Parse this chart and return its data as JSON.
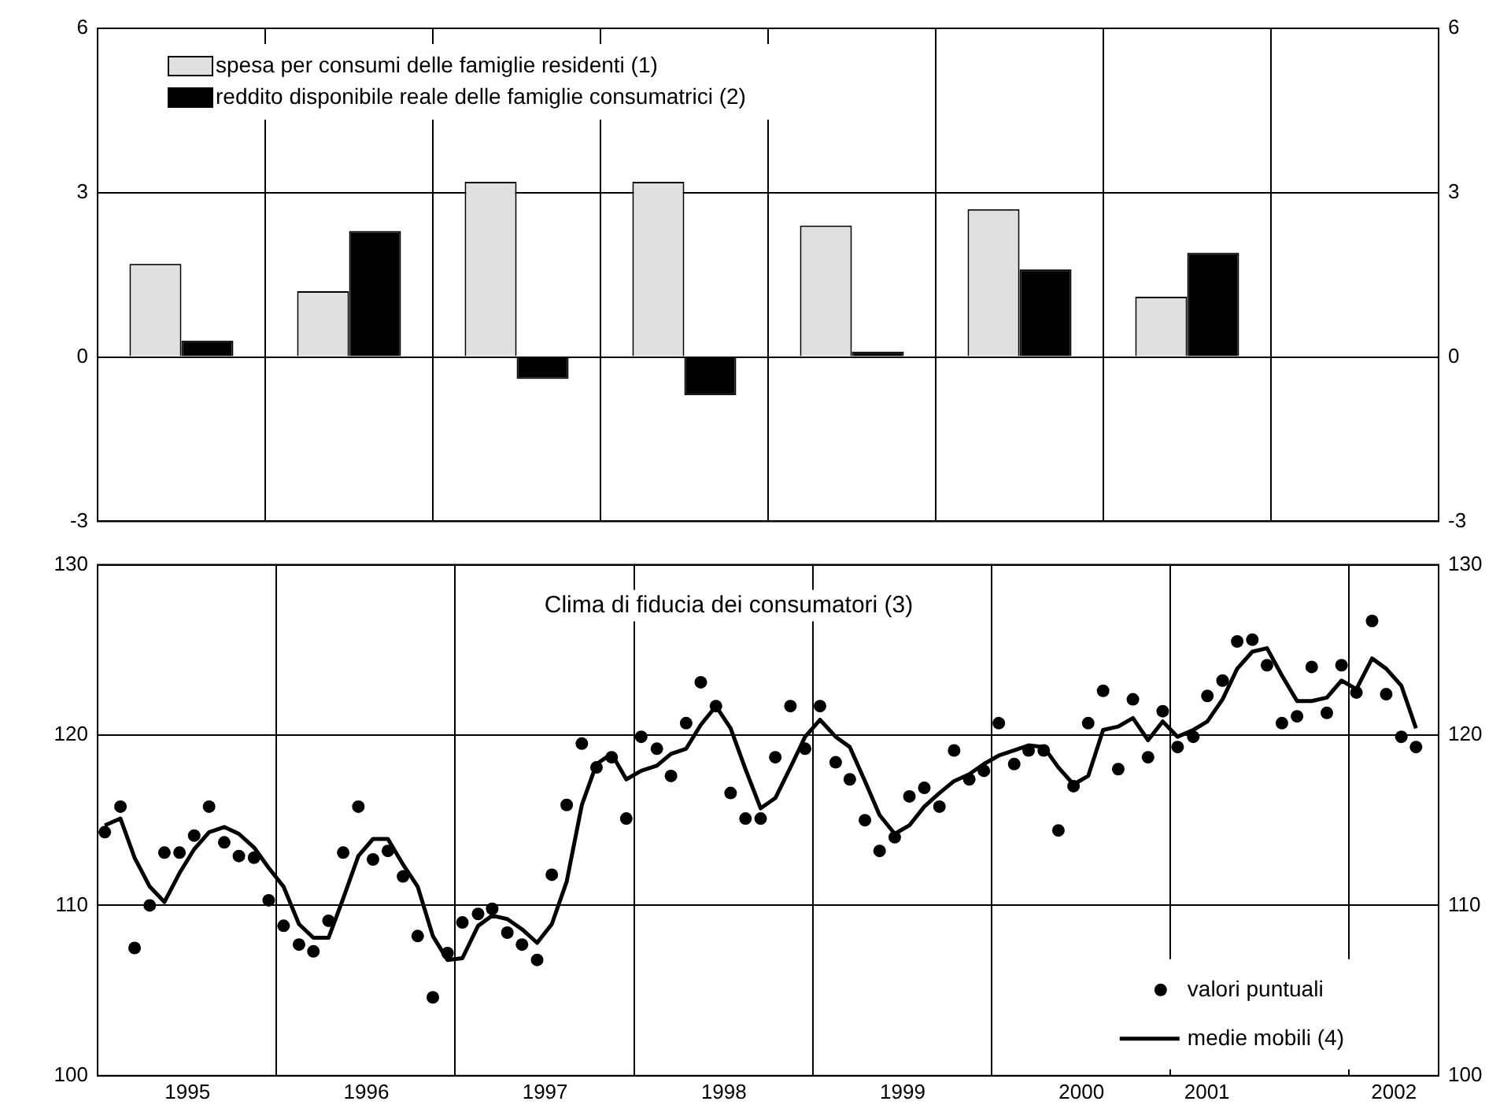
{
  "chart_data": [
    {
      "type": "bar",
      "categories": [
        null,
        null,
        null,
        null,
        null,
        null,
        null,
        null
      ],
      "series": [
        {
          "name": "spesa per consumi delle famiglie residenti (1)",
          "color": "#e0e0e0",
          "values": [
            1.7,
            1.2,
            3.2,
            3.2,
            2.4,
            2.7,
            1.1,
            null
          ]
        },
        {
          "name": "reddito disponibile reale delle famiglie consumatrici (2)",
          "color": "#000000",
          "values": [
            0.3,
            2.3,
            -0.4,
            -0.7,
            0.1,
            1.6,
            1.9,
            null
          ]
        }
      ],
      "ylim": [
        -3,
        6
      ],
      "yticks": [
        -3,
        0,
        3,
        6
      ],
      "y2lim": [
        -3,
        6
      ],
      "y2ticks": [
        -3,
        0,
        3,
        6
      ],
      "grid": true,
      "legend": "top left",
      "tick_labels": "y"
    },
    {
      "type": "line",
      "title": "Clima di fiducia dei consumatori (3)",
      "x": [
        "1995-01-16",
        "1995-02-16",
        "1995-03-16",
        "1995-04-16",
        "1995-05-16",
        "1995-06-16",
        "1995-07-16",
        "1995-08-16",
        "1995-09-16",
        "1995-10-16",
        "1995-11-16",
        "1995-12-16",
        "1996-01-16",
        "1996-02-16",
        "1996-03-16",
        "1996-04-16",
        "1996-05-16",
        "1996-06-16",
        "1996-07-16",
        "1996-08-16",
        "1996-09-16",
        "1996-10-16",
        "1996-11-16",
        "1996-12-16",
        "1997-01-16",
        "1997-02-16",
        "1997-03-16",
        "1997-04-16",
        "1997-05-16",
        "1997-06-16",
        "1997-07-16",
        "1997-08-16",
        "1997-09-16",
        "1997-10-16",
        "1997-11-16",
        "1997-12-16",
        "1998-01-16",
        "1998-02-16",
        "1998-03-16",
        "1998-04-16",
        "1998-05-16",
        "1998-06-16",
        "1998-07-16",
        "1998-08-16",
        "1998-09-16",
        "1998-10-16",
        "1998-11-16",
        "1998-12-16",
        "1999-01-16",
        "1999-02-16",
        "1999-03-16",
        "1999-04-16",
        "1999-05-16",
        "1999-06-16",
        "1999-07-16",
        "1999-08-16",
        "1999-09-16",
        "1999-10-16",
        "1999-11-16",
        "1999-12-16",
        "2000-01-16",
        "2000-02-16",
        "2000-03-16",
        "2000-04-16",
        "2000-05-16",
        "2000-06-16",
        "2000-07-16",
        "2000-08-16",
        "2000-09-16",
        "2000-10-16",
        "2000-11-16",
        "2000-12-16",
        "2001-01-16",
        "2001-02-16",
        "2001-03-16",
        "2001-04-16",
        "2001-05-16",
        "2001-06-16",
        "2001-07-16",
        "2001-08-16",
        "2001-09-16",
        "2001-10-16",
        "2001-11-16",
        "2001-12-16",
        "2002-01-16",
        "2002-02-16",
        "2002-03-16",
        "2002-04-16",
        "2002-05-16"
      ],
      "series": [
        {
          "name": "valori puntuali",
          "type": "scatter",
          "color": "#000000",
          "marker": "circle",
          "values": [
            114.3,
            115.8,
            107.5,
            110.0,
            113.1,
            113.1,
            114.1,
            115.8,
            113.7,
            112.9,
            112.8,
            110.3,
            108.8,
            107.7,
            107.3,
            109.1,
            113.1,
            115.8,
            112.7,
            113.2,
            111.7,
            108.2,
            104.6,
            107.2,
            109.0,
            109.5,
            109.8,
            108.4,
            107.7,
            106.8,
            111.8,
            115.9,
            119.5,
            118.1,
            118.7,
            115.1,
            119.9,
            119.2,
            117.6,
            120.7,
            123.1,
            121.7,
            116.6,
            115.1,
            115.1,
            118.7,
            121.7,
            119.2,
            121.7,
            118.4,
            117.4,
            115.0,
            113.2,
            114.0,
            116.4,
            116.9,
            115.8,
            119.1,
            117.4,
            117.9,
            120.7,
            118.3,
            119.1,
            119.1,
            114.4,
            117.0,
            120.7,
            122.6,
            118.0,
            122.1,
            118.7,
            121.4,
            119.3,
            119.9,
            122.3,
            123.2,
            125.5,
            125.6,
            124.1,
            120.7,
            121.1,
            124.0,
            121.3,
            124.1,
            122.5,
            126.7,
            122.4,
            119.9,
            119.3
          ]
        },
        {
          "name": "medie mobili (4)",
          "type": "line",
          "color": "#000000",
          "marker": "none",
          "values": [
            114.7,
            115.1,
            112.8,
            111.1,
            110.2,
            111.9,
            113.3,
            114.3,
            114.6,
            114.2,
            113.4,
            112.2,
            111.1,
            108.9,
            108.1,
            108.1,
            110.4,
            112.9,
            113.9,
            113.9,
            112.4,
            111.1,
            108.2,
            106.8,
            106.9,
            108.8,
            109.4,
            109.2,
            108.6,
            107.8,
            108.9,
            111.4,
            115.9,
            118.3,
            118.9,
            117.4,
            117.9,
            118.2,
            118.9,
            119.2,
            120.6,
            121.7,
            120.4,
            118.0,
            115.7,
            116.3,
            118.1,
            119.9,
            120.9,
            119.9,
            119.3,
            117.3,
            115.3,
            114.2,
            114.7,
            115.8,
            116.6,
            117.3,
            117.7,
            118.3,
            118.8,
            119.1,
            119.4,
            119.3,
            118.1,
            117.1,
            117.6,
            120.3,
            120.5,
            121.0,
            119.7,
            120.8,
            119.9,
            120.3,
            120.8,
            122.1,
            123.9,
            124.9,
            125.1,
            123.5,
            122.0,
            122.0,
            122.2,
            123.2,
            122.7,
            124.5,
            123.9,
            122.9,
            120.4
          ]
        }
      ],
      "xlim": [
        "1995-01-01",
        "2002-07-01"
      ],
      "xticks": [
        {
          "value": "1995-07-02",
          "label": "1995"
        },
        {
          "value": "1996-01-01",
          "label": null
        },
        {
          "value": "1996-07-02",
          "label": "1996"
        },
        {
          "value": "1997-01-01",
          "label": null
        },
        {
          "value": "1997-07-02",
          "label": "1997"
        },
        {
          "value": "1998-01-01",
          "label": null
        },
        {
          "value": "1998-07-02",
          "label": "1998"
        },
        {
          "value": "1999-01-01",
          "label": null
        },
        {
          "value": "1999-07-02",
          "label": "1999"
        },
        {
          "value": "2000-01-01",
          "label": null
        },
        {
          "value": "2000-07-02",
          "label": "2000"
        },
        {
          "value": "2001-01-01",
          "label": null
        },
        {
          "value": "2001-03-15",
          "label": "2001"
        },
        {
          "value": "2002-01-01",
          "label": null
        },
        {
          "value": "2002-04-01",
          "label": "2002"
        }
      ],
      "ylim": [
        100,
        130
      ],
      "yticks": [
        100,
        110,
        120,
        130
      ],
      "y2lim": [
        100,
        130
      ],
      "y2ticks": [
        100,
        110,
        120,
        130
      ],
      "grid": true,
      "legend": "bottom right"
    }
  ]
}
